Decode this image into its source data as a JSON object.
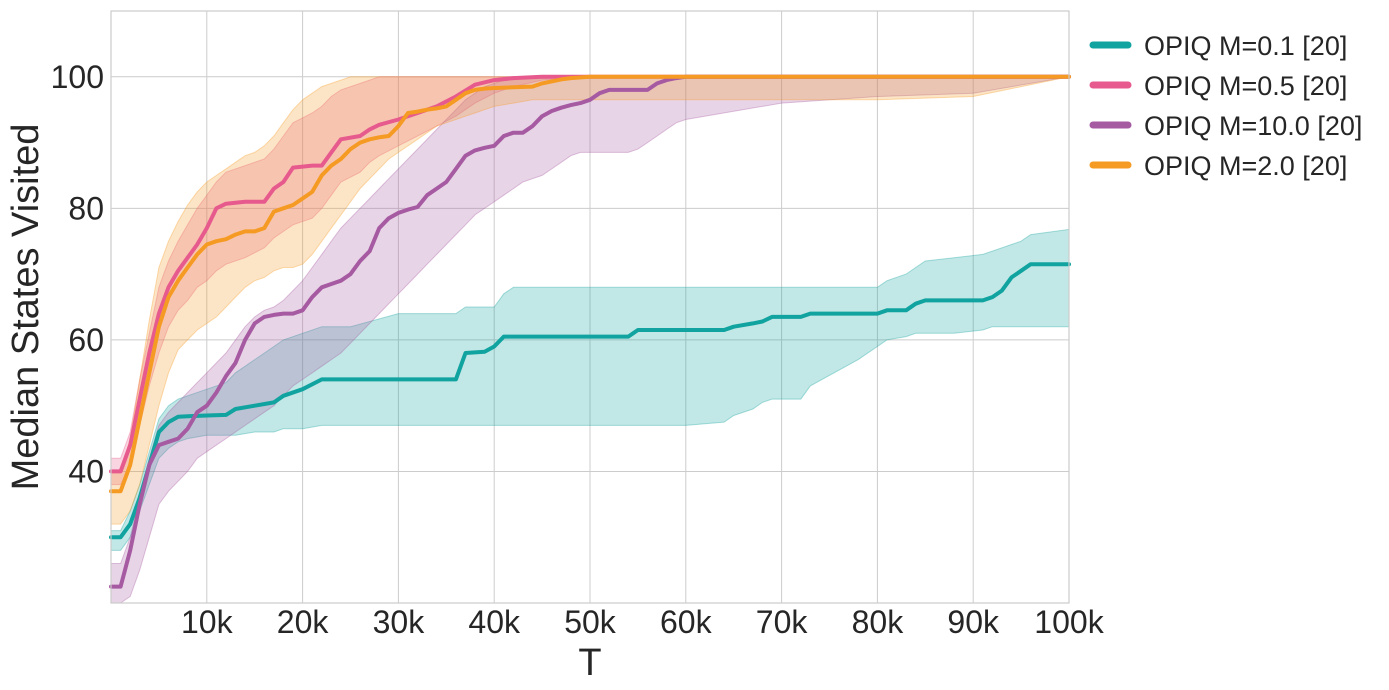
{
  "chart_data": {
    "type": "line",
    "title": "",
    "xlabel": "T",
    "ylabel": "Median States Visited",
    "xlim": [
      0,
      100000
    ],
    "ylim": [
      20,
      110
    ],
    "xticks": [
      10000,
      20000,
      30000,
      40000,
      50000,
      60000,
      70000,
      80000,
      90000,
      100000
    ],
    "xtick_labels": [
      "10k",
      "20k",
      "30k",
      "40k",
      "50k",
      "60k",
      "70k",
      "80k",
      "90k",
      "100k"
    ],
    "yticks": [
      40,
      60,
      80,
      100
    ],
    "ytick_labels": [
      "40",
      "60",
      "80",
      "100"
    ],
    "grid": true,
    "legend_position": "outside-top-right",
    "series": [
      {
        "name": "OPIQ M=0.1 [20]",
        "color": "#10a39f",
        "x": [
          0,
          1000,
          2000,
          3000,
          4000,
          5000,
          6000,
          7000,
          8000,
          10000,
          12000,
          13000,
          15000,
          17000,
          18000,
          20000,
          22000,
          25000,
          30000,
          36000,
          37000,
          39000,
          40000,
          41000,
          42000,
          45000,
          50000,
          54000,
          55000,
          60000,
          64000,
          65000,
          67000,
          68000,
          69000,
          72000,
          73000,
          78000,
          80000,
          81000,
          83000,
          84000,
          85000,
          88000,
          91000,
          92000,
          93000,
          94000,
          95000,
          96000,
          100000
        ],
        "values": [
          30,
          30,
          32,
          36,
          41,
          46,
          47.5,
          48.3,
          48.4,
          48.5,
          48.6,
          49.5,
          50,
          50.5,
          51.5,
          52.5,
          54,
          54,
          54,
          54,
          58,
          58.2,
          59,
          60.5,
          60.5,
          60.5,
          60.5,
          60.5,
          61.5,
          61.5,
          61.5,
          62,
          62.5,
          62.8,
          63.5,
          63.5,
          64,
          64,
          64,
          64.5,
          64.5,
          65.5,
          66,
          66,
          66,
          66.5,
          67.5,
          69.5,
          70.5,
          71.5,
          71.5
        ],
        "lower": [
          28,
          28,
          30,
          34,
          38,
          42,
          43.5,
          44.5,
          45,
          45.5,
          45.5,
          45.5,
          46,
          46,
          46.5,
          46.5,
          47,
          47,
          47,
          47,
          47,
          47,
          47,
          47,
          47,
          47,
          47,
          47,
          47,
          47,
          47.5,
          48.5,
          49.5,
          50.5,
          51,
          51,
          53,
          57,
          59,
          60,
          60.5,
          61,
          61,
          61,
          61.5,
          62,
          62,
          62,
          62,
          62,
          62
        ],
        "upper": [
          31,
          31,
          34,
          38,
          43,
          48,
          50,
          51,
          51.5,
          52.5,
          53.5,
          55,
          57,
          59,
          60,
          61,
          62,
          62,
          64,
          64,
          65,
          65,
          65,
          67,
          68,
          68,
          68,
          68,
          68,
          68,
          68,
          68,
          68,
          68,
          68,
          68,
          68,
          68,
          68,
          69,
          70,
          71,
          72,
          72.5,
          73,
          73.5,
          74,
          74.5,
          75,
          76,
          76.8
        ]
      },
      {
        "name": "OPIQ M=0.5 [20]",
        "color": "#e75a8d",
        "x": [
          0,
          1000,
          2000,
          3000,
          4000,
          5000,
          6000,
          7000,
          8000,
          9000,
          10000,
          11000,
          12000,
          14000,
          16000,
          17000,
          18000,
          19000,
          21000,
          22000,
          23000,
          24000,
          26000,
          27000,
          28000,
          30000,
          32000,
          34000,
          36000,
          38000,
          40000,
          42000,
          45000,
          50000,
          60000,
          70000,
          80000,
          90000,
          100000
        ],
        "values": [
          40,
          40,
          44,
          51,
          58,
          64,
          68,
          70.5,
          72.5,
          74.5,
          77,
          80,
          80.7,
          81,
          81,
          83,
          84,
          86.2,
          86.5,
          86.5,
          88.5,
          90.5,
          91,
          92,
          92.7,
          93.5,
          94.5,
          95.5,
          97,
          98.8,
          99.5,
          99.8,
          100,
          100,
          100,
          100,
          100,
          100,
          100
        ],
        "lower": [
          38,
          38,
          41,
          47,
          53,
          58,
          62,
          64.5,
          66,
          68,
          69,
          70.5,
          71.5,
          72.5,
          74,
          75.5,
          76.5,
          77.5,
          78.5,
          80,
          82,
          84,
          85.5,
          87,
          88,
          89.5,
          91,
          92.5,
          94,
          96,
          97.5,
          98.5,
          99.5,
          100,
          100,
          100,
          100,
          100,
          100
        ],
        "upper": [
          42,
          42,
          46,
          54,
          61,
          68,
          72,
          75,
          77.5,
          80,
          82,
          84,
          85.5,
          86.5,
          87.5,
          89,
          91,
          93,
          94.5,
          95.5,
          97,
          98,
          99,
          99.5,
          100,
          100,
          100,
          100,
          100,
          100,
          100,
          100,
          100,
          100,
          100,
          100,
          100,
          100,
          100
        ]
      },
      {
        "name": "OPIQ M=10.0 [20]",
        "color": "#a65aa1",
        "x": [
          0,
          1000,
          2000,
          3000,
          4000,
          5000,
          6000,
          7000,
          8000,
          9000,
          10000,
          11000,
          12000,
          13000,
          14000,
          15000,
          16000,
          17000,
          18000,
          19000,
          20000,
          21000,
          22000,
          23000,
          24000,
          25000,
          26000,
          27000,
          28000,
          29000,
          30000,
          31000,
          32000,
          33000,
          34000,
          35000,
          36000,
          37000,
          38000,
          39000,
          40000,
          41000,
          42000,
          43000,
          44000,
          45000,
          46000,
          47000,
          48000,
          49000,
          50000,
          51000,
          52000,
          53000,
          54000,
          55000,
          56000,
          57000,
          58000,
          59000,
          60000,
          70000,
          80000,
          90000,
          100000
        ],
        "values": [
          22.5,
          22.5,
          28,
          35,
          41,
          44,
          44.5,
          45,
          46.5,
          49,
          50,
          52,
          54.5,
          56.5,
          60,
          62.5,
          63.5,
          63.8,
          64,
          64,
          64.5,
          66.5,
          68,
          68.5,
          69,
          70,
          72,
          73.5,
          77,
          78.5,
          79.3,
          79.8,
          80.2,
          82,
          83,
          84,
          86,
          88,
          88.8,
          89.2,
          89.5,
          91,
          91.5,
          91.5,
          92.5,
          94,
          94.8,
          95.3,
          95.7,
          96,
          96.5,
          97.5,
          98,
          98,
          98,
          98,
          98,
          99,
          99.5,
          99.8,
          100,
          100,
          100,
          100,
          100
        ],
        "lower": [
          20,
          20,
          21,
          25,
          30,
          35,
          37,
          38.5,
          40,
          42,
          43,
          44,
          45,
          46,
          47,
          48,
          49,
          50,
          51.5,
          53,
          54,
          55,
          56,
          57,
          58,
          59.5,
          61,
          62.5,
          64,
          65.5,
          67,
          68.5,
          70,
          71.5,
          73,
          74.5,
          76,
          77.5,
          79,
          80,
          81,
          82,
          83,
          84,
          84.5,
          85,
          86,
          87,
          88,
          88.5,
          88.5,
          88.5,
          88.5,
          88.5,
          88.5,
          89,
          90,
          91,
          92,
          93,
          93.5,
          96,
          97,
          97.5,
          100
        ],
        "upper": [
          26,
          26,
          30,
          36,
          42,
          47,
          49,
          50.5,
          52,
          53.5,
          55,
          56.5,
          58,
          60,
          62,
          63.5,
          64.5,
          65,
          66,
          67.5,
          69,
          71,
          73,
          75,
          77,
          78.5,
          80,
          81.5,
          83,
          84.5,
          86,
          87.5,
          89,
          90.5,
          92,
          93.5,
          95,
          96.5,
          97.5,
          98.5,
          99,
          99.5,
          100,
          100,
          100,
          100,
          100,
          100,
          100,
          100,
          100,
          100,
          100,
          100,
          100,
          100,
          100,
          100,
          100,
          100,
          100,
          100,
          100,
          100,
          100
        ]
      },
      {
        "name": "OPIQ M=2.0 [20]",
        "color": "#f59a23",
        "x": [
          0,
          1000,
          2000,
          3000,
          4000,
          5000,
          6000,
          7000,
          8000,
          9000,
          10000,
          11000,
          12000,
          13000,
          14000,
          15000,
          16000,
          17000,
          18000,
          19000,
          20000,
          21000,
          22000,
          23000,
          24000,
          25000,
          26000,
          27000,
          28000,
          29000,
          30000,
          31000,
          32000,
          33000,
          34000,
          35000,
          36000,
          37000,
          38000,
          39000,
          40000,
          42000,
          44000,
          45000,
          46000,
          47000,
          48000,
          50000,
          60000,
          70000,
          80000,
          90000,
          100000
        ],
        "values": [
          37,
          37,
          41,
          48,
          55,
          62,
          66.5,
          69,
          71,
          73,
          74.5,
          75,
          75.3,
          76,
          76.5,
          76.5,
          77,
          79.5,
          80,
          80.5,
          81.5,
          82.5,
          85,
          86.5,
          87.5,
          89,
          90,
          90.5,
          90.8,
          91,
          92.5,
          94.5,
          94.7,
          95,
          95.2,
          95.5,
          96.5,
          97.5,
          98,
          98.2,
          98.3,
          98.4,
          98.5,
          99,
          99.3,
          99.6,
          99.8,
          100,
          100,
          100,
          100,
          100,
          100
        ],
        "lower": [
          32,
          32,
          34,
          38,
          44,
          50,
          55,
          58.5,
          60,
          61.5,
          62.5,
          63.5,
          65,
          66.5,
          68,
          69,
          69.5,
          70.5,
          71,
          71,
          71.5,
          73,
          75,
          77,
          79,
          81,
          83,
          84.5,
          86,
          87.5,
          88.5,
          89.5,
          90.5,
          91.5,
          92.5,
          93,
          93.5,
          94,
          94.5,
          95,
          95.5,
          96,
          96.5,
          96.5,
          96.5,
          96.5,
          96.5,
          96.5,
          96.5,
          96.5,
          96.5,
          97,
          100
        ],
        "upper": [
          40,
          40,
          45,
          54,
          63,
          71,
          75,
          78,
          80.5,
          82.5,
          84,
          85,
          86,
          87,
          88,
          88.5,
          89.5,
          91,
          93,
          95,
          96.5,
          97.5,
          98.5,
          99,
          99.5,
          100,
          100,
          100,
          100,
          100,
          100,
          100,
          100,
          100,
          100,
          100,
          100,
          100,
          100,
          100,
          100,
          100,
          100,
          100,
          100,
          100,
          100,
          100,
          100,
          100,
          100,
          100,
          100
        ]
      }
    ]
  }
}
